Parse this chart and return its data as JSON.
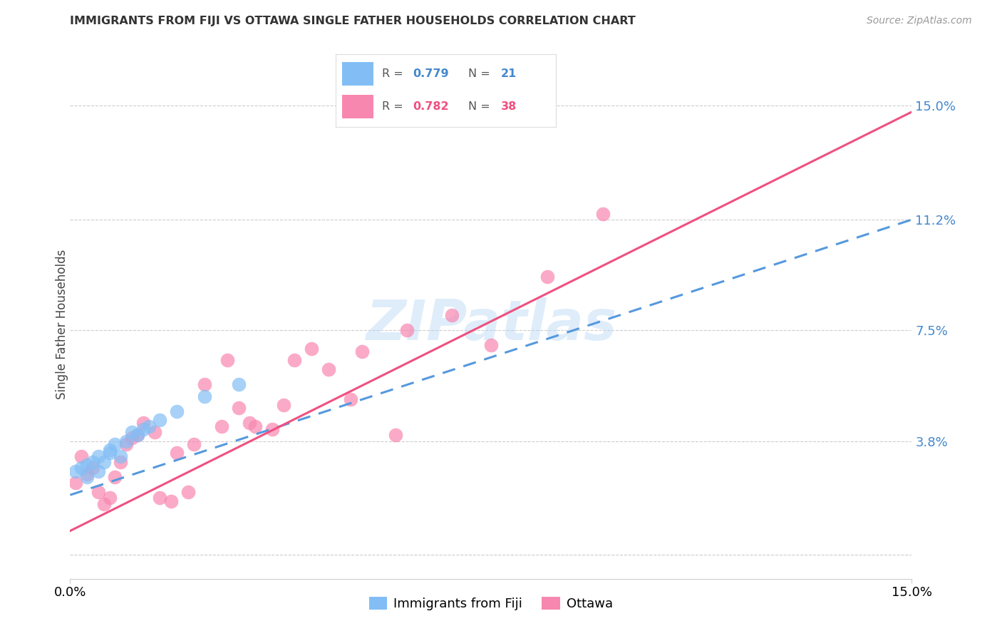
{
  "title": "IMMIGRANTS FROM FIJI VS OTTAWA SINGLE FATHER HOUSEHOLDS CORRELATION CHART",
  "source": "Source: ZipAtlas.com",
  "ylabel": "Single Father Households",
  "ytick_vals": [
    0.0,
    0.038,
    0.075,
    0.112,
    0.15
  ],
  "ytick_labels": [
    "",
    "3.8%",
    "7.5%",
    "11.2%",
    "15.0%"
  ],
  "xlim": [
    0.0,
    0.15
  ],
  "ylim": [
    -0.008,
    0.162
  ],
  "legend_fiji_r": "0.779",
  "legend_fiji_n": "21",
  "legend_ottawa_r": "0.782",
  "legend_ottawa_n": "38",
  "fiji_color": "#82bef5",
  "ottawa_color": "#f887b0",
  "fiji_line_color": "#5599dd",
  "ottawa_line_color": "#f05080",
  "watermark": "ZIPatlas",
  "fiji_line_x0": 0.0,
  "fiji_line_y0": 0.02,
  "fiji_line_x1": 0.15,
  "fiji_line_y1": 0.112,
  "ottawa_line_x0": 0.0,
  "ottawa_line_y0": 0.008,
  "ottawa_line_x1": 0.15,
  "ottawa_line_y1": 0.148,
  "fiji_points_x": [
    0.001,
    0.002,
    0.003,
    0.003,
    0.004,
    0.005,
    0.005,
    0.006,
    0.007,
    0.007,
    0.008,
    0.009,
    0.01,
    0.011,
    0.012,
    0.013,
    0.014,
    0.016,
    0.019,
    0.024,
    0.03
  ],
  "fiji_points_y": [
    0.028,
    0.029,
    0.026,
    0.03,
    0.031,
    0.028,
    0.033,
    0.031,
    0.034,
    0.035,
    0.037,
    0.033,
    0.038,
    0.041,
    0.04,
    0.042,
    0.043,
    0.045,
    0.048,
    0.053,
    0.057
  ],
  "ottawa_points_x": [
    0.001,
    0.002,
    0.003,
    0.004,
    0.005,
    0.006,
    0.007,
    0.008,
    0.009,
    0.01,
    0.011,
    0.012,
    0.013,
    0.015,
    0.016,
    0.018,
    0.019,
    0.021,
    0.022,
    0.024,
    0.027,
    0.028,
    0.03,
    0.032,
    0.033,
    0.036,
    0.038,
    0.04,
    0.043,
    0.046,
    0.05,
    0.052,
    0.058,
    0.06,
    0.068,
    0.075,
    0.085,
    0.095
  ],
  "ottawa_points_y": [
    0.024,
    0.033,
    0.027,
    0.029,
    0.021,
    0.017,
    0.019,
    0.026,
    0.031,
    0.037,
    0.039,
    0.04,
    0.044,
    0.041,
    0.019,
    0.018,
    0.034,
    0.021,
    0.037,
    0.057,
    0.043,
    0.065,
    0.049,
    0.044,
    0.043,
    0.042,
    0.05,
    0.065,
    0.069,
    0.062,
    0.052,
    0.068,
    0.04,
    0.075,
    0.08,
    0.07,
    0.093,
    0.114
  ]
}
